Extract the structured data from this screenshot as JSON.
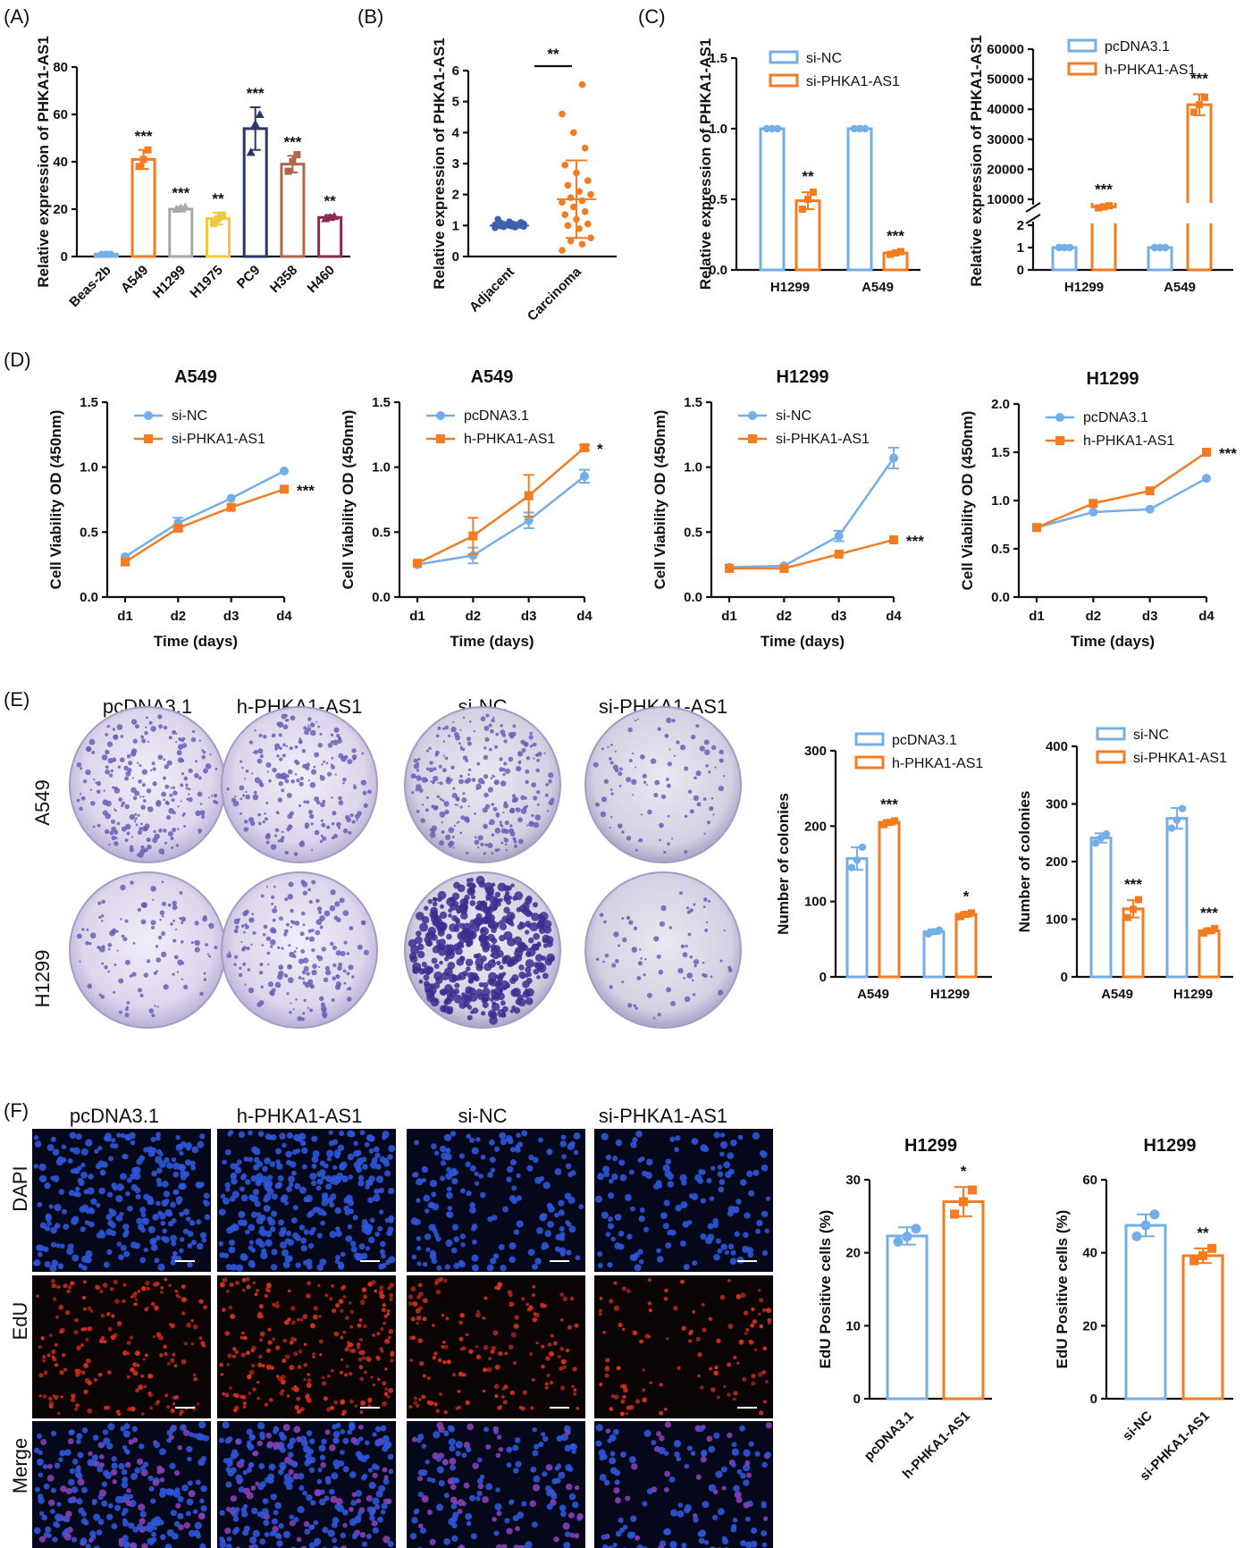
{
  "colors": {
    "blue": "#74aee6",
    "orange": "#f47b20",
    "silver": "#a9a9a9",
    "yellow": "#f2c83e",
    "navy": "#2b3768",
    "brown": "#b1664b",
    "maroon": "#8c2a53",
    "scatter_blue": "#3e5fae",
    "plate_purple": "#6a5fb8",
    "dapi_blue": "#2e56d8",
    "edu_red": "#d83020"
  },
  "panel_labels": [
    "(A)",
    "(B)",
    "(C)",
    "(D)",
    "(E)",
    "(F)"
  ],
  "image_panels": {
    "E": {
      "columns": [
        "pcDNA3.1",
        "h-PHKA1-AS1",
        "si-NC",
        "si-PHKA1-AS1"
      ],
      "rows": [
        "A549",
        "H1299"
      ]
    },
    "F": {
      "columns": [
        "pcDNA3.1",
        "h-PHKA1-AS1",
        "si-NC",
        "si-PHKA1-AS1"
      ],
      "rows": [
        "DAPI",
        "EdU",
        "Merge"
      ]
    }
  },
  "chart_data": [
    {
      "id": "A",
      "type": "bar",
      "ylabel": "Relative expression of PHKA1-AS1",
      "ylim": [
        0,
        80
      ],
      "yticks": [
        0,
        20,
        40,
        60,
        80
      ],
      "categories": [
        "Beas-2b",
        "A549",
        "H1299",
        "H1975",
        "PC9",
        "H358",
        "H460"
      ],
      "values": [
        1,
        41,
        20,
        16,
        54,
        39,
        16.5
      ],
      "errors": [
        0.5,
        4,
        1,
        2.5,
        9,
        3.5,
        1
      ],
      "points": [
        [
          1,
          1,
          1
        ],
        [
          38,
          41,
          45
        ],
        [
          20,
          20.5,
          21
        ],
        [
          14,
          16,
          17.5
        ],
        [
          44,
          56,
          60
        ],
        [
          36,
          40,
          43
        ],
        [
          16,
          16.5,
          17
        ]
      ],
      "colors": [
        "#74aee6",
        "#f47b20",
        "#a9a9a9",
        "#f2c83e",
        "#2b3768",
        "#b1664b",
        "#8c2a53"
      ],
      "significance": [
        "",
        "***",
        "***",
        "**",
        "***",
        "***",
        "**"
      ]
    },
    {
      "id": "B",
      "type": "scatter",
      "ylabel": "Relative expression of PHKA1-AS1",
      "ylim": [
        0,
        6
      ],
      "yticks": [
        0,
        1,
        2,
        3,
        4,
        5,
        6
      ],
      "categories": [
        "Adjacent",
        "Carcinoma"
      ],
      "groups": [
        {
          "name": "Adjacent",
          "mean": 1.0,
          "sd": 0.05,
          "values": [
            0.93,
            0.95,
            0.96,
            0.97,
            0.98,
            0.99,
            1.0,
            1.0,
            1.0,
            1.01,
            1.02,
            1.02,
            1.03,
            1.04,
            1.05,
            1.06,
            1.08,
            1.1,
            1.12,
            1.2
          ]
        },
        {
          "name": "Carcinoma",
          "mean": 1.85,
          "sd": 1.25,
          "values": [
            0.2,
            0.4,
            0.5,
            0.6,
            0.9,
            1.0,
            1.05,
            1.2,
            1.35,
            1.45,
            1.6,
            1.75,
            1.8,
            1.9,
            2.0,
            2.1,
            2.3,
            2.45,
            2.7,
            2.95,
            3.5,
            4.0,
            4.6,
            5.55
          ]
        }
      ],
      "significance": "**"
    },
    {
      "id": "C1",
      "type": "bar",
      "ylabel": "Relative expression of PHKA1-AS1",
      "ylim": [
        0,
        1.5
      ],
      "yticks": [
        0,
        0.5,
        1.0,
        1.5
      ],
      "ytick_labels": [
        "0.0",
        "0.5",
        "1.0",
        "1.5"
      ],
      "categories": [
        "H1299",
        "A549"
      ],
      "series": [
        {
          "name": "si-NC",
          "values": [
            1.0,
            1.0
          ],
          "errors": [
            0,
            0
          ],
          "points": [
            [
              1,
              1,
              1
            ],
            [
              1,
              1,
              1
            ]
          ]
        },
        {
          "name": "si-PHKA1-AS1",
          "values": [
            0.49,
            0.12
          ],
          "errors": [
            0.06,
            0.01
          ],
          "points": [
            [
              0.43,
              0.5,
              0.55
            ],
            [
              0.11,
              0.12,
              0.13
            ]
          ]
        }
      ],
      "significance": [
        "**",
        "***"
      ]
    },
    {
      "id": "C2",
      "type": "bar",
      "ylabel": "Relative expression of PHKA1-AS1",
      "broken_axis": {
        "lower": [
          0,
          2
        ],
        "upper": [
          0,
          60000
        ]
      },
      "yticks_lower": [
        0,
        1,
        2
      ],
      "yticks_upper": [
        10000,
        20000,
        30000,
        40000,
        50000,
        60000
      ],
      "categories": [
        "H1299",
        "A549"
      ],
      "series": [
        {
          "name": "pcDNA3.1",
          "values": [
            1.0,
            1.0
          ],
          "errors": [
            0,
            0
          ]
        },
        {
          "name": "h-PHKA1-AS1",
          "values": [
            7500,
            41500
          ],
          "errors": [
            500,
            3500
          ]
        }
      ],
      "significance": [
        "***",
        "***"
      ]
    },
    {
      "id": "D1",
      "type": "line",
      "title": "A549",
      "xlabel": "Time (days)",
      "ylabel": "Cell Viability OD (450nm)",
      "ylim": [
        0,
        1.5
      ],
      "yticks": [
        0,
        0.5,
        1.0,
        1.5
      ],
      "ytick_labels": [
        "0.0",
        "0.5",
        "1.0",
        "1.5"
      ],
      "categories": [
        "d1",
        "d2",
        "d3",
        "d4"
      ],
      "series": [
        {
          "name": "si-NC",
          "values": [
            0.31,
            0.57,
            0.76,
            0.97
          ],
          "errors": [
            0.01,
            0.04,
            0.01,
            0.01
          ]
        },
        {
          "name": "si-PHKA1-AS1",
          "values": [
            0.27,
            0.53,
            0.69,
            0.83
          ],
          "errors": [
            0.01,
            0.02,
            0.01,
            0.01
          ]
        }
      ],
      "significance": "***"
    },
    {
      "id": "D2",
      "type": "line",
      "title": "A549",
      "xlabel": "Time (days)",
      "ylabel": "Cell Viability OD (450nm)",
      "ylim": [
        0,
        1.5
      ],
      "yticks": [
        0,
        0.5,
        1.0,
        1.5
      ],
      "ytick_labels": [
        "0.0",
        "0.5",
        "1.0",
        "1.5"
      ],
      "categories": [
        "d1",
        "d2",
        "d3",
        "d4"
      ],
      "series": [
        {
          "name": "pcDNA3.1",
          "values": [
            0.25,
            0.32,
            0.59,
            0.93
          ],
          "errors": [
            0.01,
            0.06,
            0.06,
            0.05
          ]
        },
        {
          "name": "h-PHKA1-AS1",
          "values": [
            0.26,
            0.47,
            0.78,
            1.15
          ],
          "errors": [
            0.01,
            0.14,
            0.16,
            0.02
          ]
        }
      ],
      "significance": "*"
    },
    {
      "id": "D3",
      "type": "line",
      "title": "H1299",
      "xlabel": "Time (days)",
      "ylabel": "Cell Viability OD (450nm)",
      "ylim": [
        0,
        1.5
      ],
      "yticks": [
        0,
        0.5,
        1.0,
        1.5
      ],
      "ytick_labels": [
        "0.0",
        "0.5",
        "1.0",
        "1.5"
      ],
      "categories": [
        "d1",
        "d2",
        "d3",
        "d4"
      ],
      "series": [
        {
          "name": "si-NC",
          "values": [
            0.23,
            0.24,
            0.47,
            1.07
          ],
          "errors": [
            0.01,
            0.01,
            0.04,
            0.08
          ]
        },
        {
          "name": "si-PHKA1-AS1",
          "values": [
            0.22,
            0.22,
            0.33,
            0.44
          ],
          "errors": [
            0.01,
            0.01,
            0.01,
            0.01
          ]
        }
      ],
      "significance": "***"
    },
    {
      "id": "D4",
      "type": "line",
      "title": "H1299",
      "xlabel": "Time (days)",
      "ylabel": "Cell Viability OD (450nm)",
      "ylim": [
        0,
        2.0
      ],
      "yticks": [
        0,
        0.5,
        1.0,
        1.5,
        2.0
      ],
      "ytick_labels": [
        "0.0",
        "0.5",
        "1.0",
        "1.5",
        "2.0"
      ],
      "categories": [
        "d1",
        "d2",
        "d3",
        "d4"
      ],
      "series": [
        {
          "name": "pcDNA3.1",
          "values": [
            0.72,
            0.88,
            0.91,
            1.23
          ],
          "errors": [
            0.01,
            0.01,
            0.01,
            0.01
          ]
        },
        {
          "name": "h-PHKA1-AS1",
          "values": [
            0.72,
            0.97,
            1.1,
            1.5
          ],
          "errors": [
            0.01,
            0.01,
            0.01,
            0.01
          ]
        }
      ],
      "significance": "***"
    },
    {
      "id": "E1",
      "type": "bar",
      "ylabel": "Number of colonies",
      "ylim": [
        0,
        300
      ],
      "yticks": [
        0,
        100,
        200,
        300
      ],
      "categories": [
        "A549",
        "H1299"
      ],
      "series": [
        {
          "name": "pcDNA3.1",
          "values": [
            157,
            60
          ],
          "errors": [
            15,
            3
          ],
          "points": [
            [
              145,
              155,
              172
            ],
            [
              57,
              60,
              62
            ]
          ]
        },
        {
          "name": "h-PHKA1-AS1",
          "values": [
            205,
            83
          ],
          "errors": [
            3,
            3
          ],
          "points": [
            [
              202,
              205,
              207
            ],
            [
              80,
              83,
              85
            ]
          ]
        }
      ],
      "significance": [
        "***",
        "*"
      ]
    },
    {
      "id": "E2",
      "type": "bar",
      "ylabel": "Number of colonies",
      "ylim": [
        0,
        400
      ],
      "yticks": [
        0,
        100,
        200,
        300,
        400
      ],
      "categories": [
        "A549",
        "H1299"
      ],
      "series": [
        {
          "name": "si-NC",
          "values": [
            241,
            275
          ],
          "errors": [
            8,
            18
          ],
          "points": [
            [
              232,
              241,
              248
            ],
            [
              258,
              272,
              292
            ]
          ]
        },
        {
          "name": "si-PHKA1-AS1",
          "values": [
            118,
            80
          ],
          "errors": [
            15,
            4
          ],
          "points": [
            [
              103,
              117,
              134
            ],
            [
              76,
              80,
              84
            ]
          ]
        }
      ],
      "significance": [
        "***",
        "***"
      ]
    },
    {
      "id": "F1",
      "type": "bar",
      "title": "H1299",
      "ylabel": "EdU Positive cells (%)",
      "ylim": [
        0,
        30
      ],
      "yticks": [
        0,
        10,
        20,
        30
      ],
      "categories": [
        "pcDNA3.1",
        "h-PHKA1-AS1"
      ],
      "values": [
        22.3,
        27
      ],
      "errors": [
        1.2,
        2
      ],
      "points": [
        [
          21.5,
          22.2,
          23.3
        ],
        [
          25.3,
          27,
          28.6
        ]
      ],
      "colors": [
        "#74aee6",
        "#f47b20"
      ],
      "significance": [
        "",
        "*"
      ]
    },
    {
      "id": "F2",
      "type": "bar",
      "title": "H1299",
      "ylabel": "EdU Positive cells (%)",
      "ylim": [
        0,
        60
      ],
      "yticks": [
        0,
        20,
        40,
        60
      ],
      "categories": [
        "si-NC",
        "si-PHKA1-AS1"
      ],
      "values": [
        47.5,
        39.2
      ],
      "errors": [
        3,
        2
      ],
      "points": [
        [
          44.5,
          47.5,
          50.5
        ],
        [
          37.8,
          39.2,
          41.2
        ]
      ],
      "colors": [
        "#74aee6",
        "#f47b20"
      ],
      "significance": [
        "",
        "**"
      ]
    }
  ]
}
